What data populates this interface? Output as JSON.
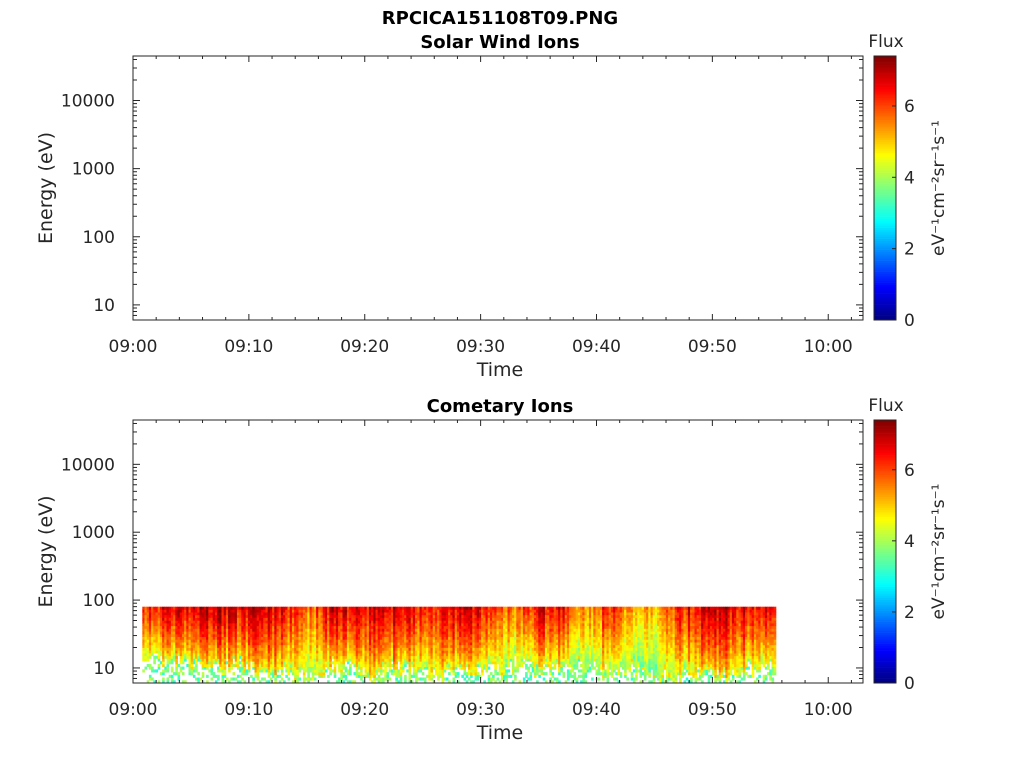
{
  "figure": {
    "title": "RPCICA151108T09.PNG"
  },
  "colors": {
    "axis": "#262626",
    "colormap": [
      "#00007f",
      "#0000ff",
      "#007fff",
      "#00ffff",
      "#7fff7f",
      "#ffff00",
      "#ff7f00",
      "#ff0000",
      "#7f0000"
    ]
  },
  "chart_data": [
    {
      "type": "heatmap",
      "title": "Solar Wind Ions",
      "xlabel": "Time",
      "ylabel": "Energy (eV)",
      "xticks": [
        "09:00",
        "09:10",
        "09:20",
        "09:30",
        "09:40",
        "09:50",
        "10:00"
      ],
      "xlim_minutes": [
        0,
        63
      ],
      "yscale": "log",
      "ylim": [
        6,
        45000
      ],
      "yticks": [
        10,
        100,
        1000,
        10000
      ],
      "ytick_labels": [
        "10",
        "100",
        "1000",
        "10000"
      ],
      "colorbar": {
        "label": "Flux",
        "unit_label": "eV⁻¹cm⁻²sr⁻¹s⁻¹",
        "range": [
          0,
          7.4
        ],
        "ticks": [
          0,
          2,
          4,
          6
        ],
        "tick_labels": [
          "0",
          "2",
          "4",
          "6"
        ]
      },
      "data_present": false,
      "grid": false
    },
    {
      "type": "heatmap",
      "title": "Cometary Ions",
      "xlabel": "Time",
      "ylabel": "Energy (eV)",
      "xticks": [
        "09:00",
        "09:10",
        "09:20",
        "09:30",
        "09:40",
        "09:50",
        "10:00"
      ],
      "xlim_minutes": [
        0,
        63
      ],
      "yscale": "log",
      "ylim": [
        6,
        45000
      ],
      "yticks": [
        10,
        100,
        1000,
        10000
      ],
      "ytick_labels": [
        "10",
        "100",
        "1000",
        "10000"
      ],
      "colorbar": {
        "label": "Flux",
        "unit_label": "eV⁻¹cm⁻²sr⁻¹s⁻¹",
        "range": [
          0,
          7.4
        ],
        "ticks": [
          0,
          2,
          4,
          6
        ],
        "tick_labels": [
          "0",
          "2",
          "4",
          "6"
        ]
      },
      "data_present": true,
      "data_time_range_minutes": [
        0.8,
        55.3
      ],
      "data_energy_range_eV": [
        6,
        80
      ],
      "flux_profile": {
        "time_minutes": [
          1,
          3,
          5,
          7,
          9,
          11,
          13,
          15,
          17,
          19,
          21,
          23,
          25,
          27,
          29,
          31,
          33,
          35,
          37,
          39,
          41,
          43,
          45,
          47,
          49,
          51,
          53,
          55
        ],
        "peak_flux": [
          6.2,
          6.8,
          6.5,
          7.0,
          6.6,
          6.9,
          6.4,
          5.6,
          6.8,
          6.5,
          6.7,
          6.9,
          6.3,
          6.6,
          6.8,
          6.2,
          5.5,
          6.7,
          6.4,
          5.3,
          6.3,
          5.2,
          5.0,
          6.1,
          6.9,
          6.8,
          6.5,
          6.7
        ],
        "low_energy_cutoff_eV": [
          14,
          12,
          11,
          10,
          12,
          9,
          8,
          7,
          11,
          10,
          8,
          11,
          9,
          8,
          10,
          9,
          12,
          9,
          10,
          11,
          9,
          10,
          8,
          7,
          9,
          8,
          10,
          11
        ]
      },
      "grid": false
    }
  ]
}
